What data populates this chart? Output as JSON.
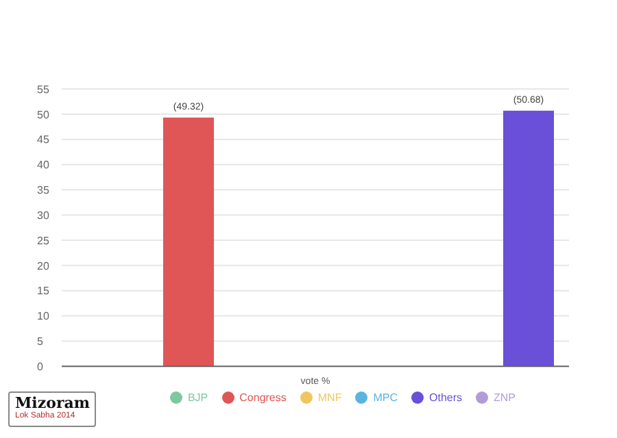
{
  "chart_data": {
    "type": "bar",
    "title": "Mizoram",
    "subtitle": "Lok Sabha 2014",
    "categories": [
      "vote %"
    ],
    "series": [
      {
        "name": "BJP",
        "color": "#7ec8a0",
        "values": [
          0
        ],
        "value_labels": [
          null
        ]
      },
      {
        "name": "Congress",
        "color": "#e05555",
        "values": [
          49.32
        ],
        "value_labels": [
          "(49.32)"
        ]
      },
      {
        "name": "MNF",
        "color": "#f0c75e",
        "values": [
          0
        ],
        "value_labels": [
          null
        ]
      },
      {
        "name": "MPC",
        "color": "#5ab4e0",
        "values": [
          0
        ],
        "value_labels": [
          null
        ]
      },
      {
        "name": "ZNP",
        "color": "#b19cd9",
        "values": [
          0
        ],
        "value_labels": [
          null
        ]
      },
      {
        "name": "Others",
        "color": "#6a4fd8",
        "values": [
          50.68
        ],
        "value_labels": [
          "(50.68)"
        ]
      }
    ],
    "ylim": [
      0,
      55
    ],
    "yticks": [
      0,
      5,
      10,
      15,
      20,
      25,
      30,
      35,
      40,
      45,
      50,
      55
    ],
    "grid": "y",
    "legend": "bottom",
    "marker": "circle"
  }
}
